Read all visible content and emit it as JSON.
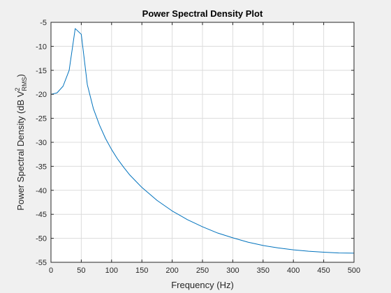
{
  "chart_data": {
    "type": "line",
    "title": "Power Spectral Density Plot",
    "xlabel": "Frequency (Hz)",
    "ylabel": {
      "prefix": "Power Spectral Density (dB V",
      "sup": "2",
      "sub": "RMS",
      "suffix": ")"
    },
    "xlim": [
      0,
      500
    ],
    "ylim": [
      -55,
      -5
    ],
    "xticks": [
      0,
      50,
      100,
      150,
      200,
      250,
      300,
      350,
      400,
      450,
      500
    ],
    "yticks": [
      -5,
      -10,
      -15,
      -20,
      -25,
      -30,
      -35,
      -40,
      -45,
      -50,
      -55
    ],
    "grid": true,
    "series": [
      {
        "color": "#0072bd",
        "x": [
          0,
          10,
          20,
          30,
          40,
          50,
          60,
          70,
          80,
          90,
          100,
          110,
          120,
          130,
          140,
          150,
          175,
          200,
          225,
          250,
          275,
          300,
          325,
          350,
          375,
          400,
          425,
          450,
          475,
          500
        ],
        "y": [
          -20,
          -19.7,
          -18.3,
          -15,
          -6.3,
          -7.5,
          -18,
          -23,
          -26.4,
          -29.2,
          -31.5,
          -33.5,
          -35.2,
          -36.8,
          -38.1,
          -39.4,
          -42.1,
          -44.3,
          -46.1,
          -47.6,
          -48.9,
          -49.9,
          -50.8,
          -51.5,
          -52,
          -52.4,
          -52.7,
          -52.9,
          -53.05,
          -53.1
        ]
      }
    ]
  }
}
